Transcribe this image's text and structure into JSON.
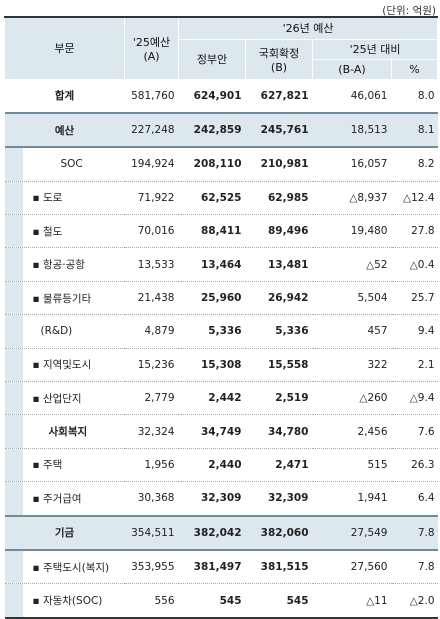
{
  "unit_note": "(단위: 억원)",
  "headers": {
    "col1": "부문",
    "col2_l1": "'25예산",
    "col2_l2": "(A)",
    "group26": "'26년 예산",
    "gov": "정부안",
    "nat_l1": "국회확정",
    "nat_l2": "(B)",
    "diff_group": "'25년 대비",
    "diff": "(B-A)",
    "pct": "%"
  },
  "rows": [
    {
      "label": "합계",
      "a": "581,760",
      "gov": "624,901",
      "b": "627,821",
      "diff": "46,061",
      "pct": "8.0"
    },
    {
      "label": "예산",
      "a": "227,248",
      "gov": "242,859",
      "b": "245,761",
      "diff": "18,513",
      "pct": "8.1"
    },
    {
      "label": "SOC",
      "a": "194,924",
      "gov": "208,110",
      "b": "210,981",
      "diff": "16,057",
      "pct": "8.2"
    },
    {
      "label": "▪ 도로",
      "a": "71,922",
      "gov": "62,525",
      "b": "62,985",
      "diff": "△8,937",
      "pct": "△12.4"
    },
    {
      "label": "▪ 철도",
      "a": "70,016",
      "gov": "88,411",
      "b": "89,496",
      "diff": "19,480",
      "pct": "27.8"
    },
    {
      "label": "▪ 항공·공항",
      "a": "13,533",
      "gov": "13,464",
      "b": "13,481",
      "diff": "△52",
      "pct": "△0.4"
    },
    {
      "label": "▪ 물류등기타",
      "a": "21,438",
      "gov": "25,960",
      "b": "26,942",
      "diff": "5,504",
      "pct": "25.7"
    },
    {
      "label": "(R&D)",
      "a": "4,879",
      "gov": "5,336",
      "b": "5,336",
      "diff": "457",
      "pct": "9.4"
    },
    {
      "label": "▪ 지역및도시",
      "a": "15,236",
      "gov": "15,308",
      "b": "15,558",
      "diff": "322",
      "pct": "2.1"
    },
    {
      "label": "▪ 산업단지",
      "a": "2,779",
      "gov": "2,442",
      "b": "2,519",
      "diff": "△260",
      "pct": "△9.4"
    },
    {
      "label": "사회복지",
      "a": "32,324",
      "gov": "34,749",
      "b": "34,780",
      "diff": "2,456",
      "pct": "7.6"
    },
    {
      "label": "▪ 주택",
      "a": "1,956",
      "gov": "2,440",
      "b": "2,471",
      "diff": "515",
      "pct": "26.3"
    },
    {
      "label": "▪ 주거급여",
      "a": "30,368",
      "gov": "32,309",
      "b": "32,309",
      "diff": "1,941",
      "pct": "6.4"
    },
    {
      "label": "기금",
      "a": "354,511",
      "gov": "382,042",
      "b": "382,060",
      "diff": "27,549",
      "pct": "7.8"
    },
    {
      "label": "▪ 주택도시(복지)",
      "a": "353,955",
      "gov": "381,497",
      "b": "381,515",
      "diff": "27,560",
      "pct": "7.8"
    },
    {
      "label": "▪ 자동차(SOC)",
      "a": "556",
      "gov": "545",
      "b": "545",
      "diff": "△11",
      "pct": "△2.0"
    }
  ]
}
